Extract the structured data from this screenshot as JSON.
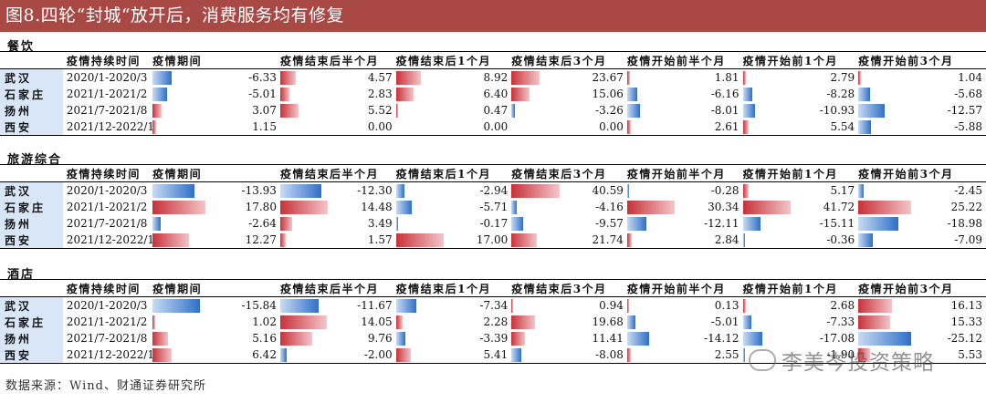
{
  "title": "图8.四轮“封城“放开后，消费服务均有修复",
  "columns": [
    "疫情持续时间",
    "疫情期间",
    "疫情结束后半个月",
    "疫情结束后1个月",
    "疫情结束后3个月",
    "疫情开始前半个月",
    "疫情开始前1个月",
    "疫情开始前3个月"
  ],
  "sections": [
    {
      "name": "餐饮",
      "rows": [
        {
          "city": "武汉",
          "period": "2020/1-2020/3",
          "values": [
            "-6.33",
            "4.57",
            "8.92",
            "23.67",
            "1.81",
            "2.79",
            "1.04"
          ]
        },
        {
          "city": "石家庄",
          "period": "2021/1-2021/2",
          "values": [
            "-5.01",
            "2.83",
            "6.40",
            "15.06",
            "-6.16",
            "-8.28",
            "-5.68"
          ]
        },
        {
          "city": "扬州",
          "period": "2021/7-2021/8",
          "values": [
            "3.07",
            "5.52",
            "0.47",
            "-3.26",
            "-8.01",
            "-10.93",
            "-12.57"
          ]
        },
        {
          "city": "西安",
          "period": "2021/12-2022/1",
          "values": [
            "1.15",
            "0.00",
            "0.00",
            "0.00",
            "2.61",
            "5.54",
            "-5.88"
          ]
        }
      ]
    },
    {
      "name": "旅游综合",
      "rows": [
        {
          "city": "武汉",
          "period": "2020/1-2020/3",
          "values": [
            "-13.93",
            "-12.30",
            "-2.94",
            "40.59",
            "-0.28",
            "5.17",
            "-2.45"
          ]
        },
        {
          "city": "石家庄",
          "period": "2021/1-2021/2",
          "values": [
            "17.80",
            "14.48",
            "-5.71",
            "-4.16",
            "30.34",
            "41.72",
            "25.22"
          ]
        },
        {
          "city": "扬州",
          "period": "2021/7-2021/8",
          "values": [
            "-2.64",
            "3.49",
            "-0.17",
            "-9.57",
            "-12.11",
            "-15.11",
            "-18.98"
          ]
        },
        {
          "city": "西安",
          "period": "2021/12-2022/1",
          "values": [
            "12.27",
            "1.57",
            "17.00",
            "21.74",
            "2.84",
            "-0.36",
            "-7.09"
          ]
        }
      ]
    },
    {
      "name": "酒店",
      "rows": [
        {
          "city": "武汉",
          "period": "2020/1-2020/3",
          "values": [
            "-15.84",
            "-11.67",
            "-7.34",
            "0.94",
            "0.13",
            "2.68",
            "16.13"
          ]
        },
        {
          "city": "石家庄",
          "period": "2021/1-2021/2",
          "values": [
            "1.02",
            "14.05",
            "2.28",
            "19.68",
            "-5.01",
            "-7.33",
            "15.33"
          ]
        },
        {
          "city": "扬州",
          "period": "2021/7-2021/8",
          "values": [
            "5.16",
            "9.76",
            "-3.39",
            "11.41",
            "-14.12",
            "-17.08",
            "-25.12"
          ]
        },
        {
          "city": "西安",
          "period": "2021/12-2022/1",
          "values": [
            "6.42",
            "-2.00",
            "5.41",
            "-8.08",
            "2.55",
            "-1.90",
            "5.53"
          ]
        }
      ]
    }
  ],
  "footer": "数据来源：Wind、财通证券研究所",
  "watermark": "李美岑投资策略"
}
